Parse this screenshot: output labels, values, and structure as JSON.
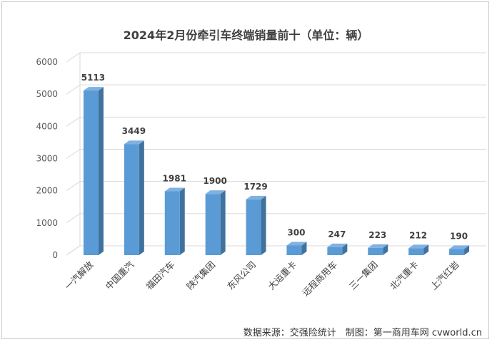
{
  "chart_data": {
    "type": "bar",
    "title": "2024年2月份牵引车终端销量前十（单位：辆）",
    "categories": [
      "一汽解放",
      "中国重汽",
      "福田汽车",
      "陕汽集团",
      "东风公司",
      "大运重卡",
      "远程商用车",
      "三一集团",
      "北汽重卡",
      "上汽红岩"
    ],
    "values": [
      5113,
      3449,
      1981,
      1900,
      1729,
      300,
      247,
      223,
      212,
      190
    ],
    "ylim": [
      0,
      6000
    ],
    "yticks": [
      0,
      1000,
      2000,
      3000,
      4000,
      5000,
      6000
    ],
    "xlabel": "",
    "ylabel": "",
    "grid": true,
    "colors": {
      "bar_front": "#5b9bd5",
      "bar_side": "#41729e",
      "bar_top": "#7fb2e0",
      "grid": "#d9d9d9"
    }
  },
  "footer": {
    "source": "数据来源：交强险统计　制图：第一商用车网 cvworld.cn"
  }
}
